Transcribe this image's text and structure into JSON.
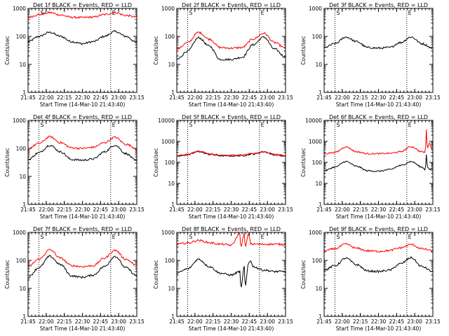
{
  "chart_data": [
    {
      "id": 1,
      "type": "line",
      "title": "Det 1f BLACK = Events, RED = LLD",
      "ylabel": "Counts/sec",
      "xlabel": "Start Time (14-Mar-10 21:43:40)",
      "xticks": [
        "21:45",
        "22:00",
        "22:15",
        "22:30",
        "22:45",
        "23:00",
        "23:15"
      ],
      "yticks": [
        "1",
        "10",
        "100",
        "1000"
      ],
      "ylim": [
        1,
        1000
      ],
      "log_y": true,
      "markers": [
        "S",
        "E"
      ],
      "series": [
        {
          "color": "#000000",
          "x": [
            0,
            10,
            20,
            30,
            40,
            50,
            60,
            70,
            80,
            90,
            100
          ],
          "y": [
            65,
            100,
            140,
            100,
            65,
            55,
            65,
            100,
            150,
            100,
            60
          ]
        },
        {
          "color": "#ff0000",
          "x": [
            0,
            10,
            20,
            30,
            40,
            50,
            60,
            70,
            80,
            90,
            100
          ],
          "y": [
            480,
            600,
            710,
            580,
            480,
            470,
            490,
            600,
            710,
            560,
            490
          ]
        }
      ]
    },
    {
      "id": 2,
      "type": "line",
      "title": "Det 2f BLACK = Events, RED = LLD",
      "ylabel": "Counts/sec",
      "xlabel": "Start Time (14-Mar-10 21:43:40)",
      "xticks": [
        "21:45",
        "22:00",
        "22:15",
        "22:30",
        "22:45",
        "23:00",
        "23:15"
      ],
      "yticks": [
        "1",
        "10",
        "100",
        "1000"
      ],
      "ylim": [
        1,
        1000
      ],
      "log_y": true,
      "markers": [
        "S",
        "E"
      ],
      "series": [
        {
          "color": "#000000",
          "x": [
            0,
            10,
            20,
            30,
            40,
            50,
            60,
            70,
            80,
            90,
            100
          ],
          "y": [
            15,
            30,
            90,
            45,
            15,
            15,
            18,
            50,
            95,
            35,
            18
          ]
        },
        {
          "color": "#ff0000",
          "x": [
            0,
            10,
            20,
            30,
            40,
            50,
            60,
            70,
            80,
            90,
            100
          ],
          "y": [
            35,
            60,
            140,
            80,
            40,
            38,
            40,
            80,
            130,
            60,
            38
          ]
        }
      ]
    },
    {
      "id": 3,
      "type": "line",
      "title": "Det 3f BLACK = Events, RED = LLD",
      "ylabel": "Counts/sec",
      "xlabel": "Start Time (14-Mar-10 21:43:40)",
      "xticks": [
        "21:45",
        "22:00",
        "22:15",
        "22:30",
        "22:45",
        "23:00",
        "23:15"
      ],
      "yticks": [
        "1",
        "10",
        "100",
        "1000"
      ],
      "ylim": [
        1,
        1000
      ],
      "log_y": true,
      "markers": [
        "S",
        "E"
      ],
      "series": [
        {
          "color": "#000000",
          "x": [
            0,
            10,
            20,
            30,
            40,
            50,
            60,
            70,
            80,
            90,
            100
          ],
          "y": [
            40,
            55,
            95,
            65,
            40,
            38,
            40,
            60,
            95,
            55,
            38
          ]
        }
      ]
    },
    {
      "id": 4,
      "type": "line",
      "title": "Det 4f BLACK = Events, RED = LLD",
      "ylabel": "Counts/sec",
      "xlabel": "Start Time (14-Mar-10 21:43:40)",
      "xticks": [
        "21:45",
        "22:00",
        "22:15",
        "22:30",
        "22:45",
        "23:00",
        "23:15"
      ],
      "yticks": [
        "1",
        "10",
        "100",
        "1000"
      ],
      "ylim": [
        1,
        1000
      ],
      "log_y": true,
      "markers": [
        "S",
        "E"
      ],
      "series": [
        {
          "color": "#000000",
          "x": [
            0,
            10,
            20,
            30,
            40,
            50,
            60,
            70,
            80,
            90,
            100
          ],
          "y": [
            40,
            70,
            130,
            75,
            40,
            38,
            42,
            75,
            130,
            65,
            35
          ]
        },
        {
          "color": "#ff0000",
          "x": [
            0,
            10,
            20,
            30,
            40,
            50,
            60,
            70,
            80,
            90,
            100
          ],
          "y": [
            100,
            150,
            260,
            160,
            105,
            100,
            110,
            160,
            250,
            140,
            100
          ]
        }
      ]
    },
    {
      "id": 5,
      "type": "line",
      "title": "Det 5f BLACK = Events, RED = LLD",
      "ylabel": "Counts/sec",
      "xlabel": "Start Time (14-Mar-10 21:43:40)",
      "xticks": [
        "21:45",
        "22:00",
        "22:15",
        "22:30",
        "22:45",
        "23:00",
        "23:15"
      ],
      "yticks": [
        "1",
        "10",
        "100",
        "1000",
        "10000"
      ],
      "ylim": [
        1,
        10000
      ],
      "log_y": true,
      "markers": [
        "S",
        "E"
      ],
      "series": [
        {
          "color": "#000000",
          "x": [
            0,
            10,
            20,
            30,
            40,
            50,
            60,
            70,
            80,
            90,
            100
          ],
          "y": [
            200,
            230,
            330,
            240,
            210,
            205,
            210,
            250,
            320,
            230,
            200
          ]
        },
        {
          "color": "#ff0000",
          "x": [
            0,
            10,
            20,
            30,
            40,
            50,
            60,
            70,
            80,
            90,
            100
          ],
          "y": [
            210,
            240,
            350,
            260,
            220,
            215,
            220,
            260,
            330,
            240,
            210
          ]
        }
      ]
    },
    {
      "id": 6,
      "type": "line",
      "title": "Det 6f BLACK = Events, RED = LLD",
      "ylabel": "Counts/sec",
      "xlabel": "Start Time (14-Mar-10 21:43:40)",
      "xticks": [
        "21:45",
        "22:00",
        "22:15",
        "22:30",
        "22:45",
        "23:00",
        "23:15"
      ],
      "yticks": [
        "1",
        "10",
        "100",
        "1000",
        "10000"
      ],
      "ylim": [
        1,
        10000
      ],
      "log_y": true,
      "markers": [
        "S",
        "E"
      ],
      "series": [
        {
          "color": "#000000",
          "x": [
            0,
            10,
            20,
            30,
            40,
            50,
            60,
            70,
            80,
            90,
            93,
            94,
            95,
            97,
            100
          ],
          "y": [
            40,
            60,
            110,
            65,
            40,
            38,
            45,
            70,
            110,
            60,
            45,
            250,
            60,
            45,
            50
          ]
        },
        {
          "color": "#ff0000",
          "x": [
            0,
            10,
            20,
            30,
            40,
            50,
            60,
            70,
            80,
            90,
            93,
            94,
            95,
            97,
            100
          ],
          "y": [
            260,
            300,
            550,
            320,
            260,
            260,
            270,
            320,
            560,
            320,
            300,
            3500,
            500,
            800,
            350
          ]
        }
      ]
    },
    {
      "id": 7,
      "type": "line",
      "title": "Det 7f BLACK = Events, RED = LLD",
      "ylabel": "Counts/sec",
      "xlabel": "Start Time (14-Mar-10 21:43:40)",
      "xticks": [
        "21:45",
        "22:00",
        "22:15",
        "22:30",
        "22:45",
        "23:00",
        "23:15"
      ],
      "yticks": [
        "1",
        "10",
        "100",
        "1000"
      ],
      "ylim": [
        1,
        1000
      ],
      "log_y": true,
      "markers": [
        "S",
        "E"
      ],
      "series": [
        {
          "color": "#000000",
          "x": [
            0,
            10,
            20,
            30,
            40,
            50,
            60,
            70,
            80,
            90,
            100
          ],
          "y": [
            25,
            55,
            140,
            70,
            28,
            25,
            30,
            60,
            140,
            55,
            28
          ]
        },
        {
          "color": "#ff0000",
          "x": [
            0,
            10,
            20,
            30,
            40,
            50,
            60,
            70,
            80,
            90,
            100
          ],
          "y": [
            60,
            110,
            240,
            120,
            65,
            60,
            65,
            120,
            230,
            110,
            65
          ]
        }
      ]
    },
    {
      "id": 8,
      "type": "line",
      "title": "Det 8f BLACK = Events, RED = LLD",
      "ylabel": "Counts/sec",
      "xlabel": "Start Time (14-Mar-10 21:43:40)",
      "xticks": [
        "21:45",
        "22:00",
        "22:15",
        "22:30",
        "22:45",
        "23:00",
        "23:15"
      ],
      "yticks": [
        "1",
        "10",
        "100",
        "1000"
      ],
      "ylim": [
        1,
        1000
      ],
      "log_y": true,
      "markers": [
        "S",
        "E"
      ],
      "series": [
        {
          "color": "#000000",
          "x": [
            0,
            10,
            20,
            30,
            40,
            50,
            58,
            59,
            62,
            63,
            66,
            68,
            70,
            80,
            90,
            100
          ],
          "y": [
            35,
            50,
            110,
            60,
            35,
            30,
            40,
            10,
            60,
            12,
            80,
            100,
            60,
            45,
            40,
            40
          ]
        },
        {
          "color": "#ff0000",
          "x": [
            0,
            10,
            20,
            30,
            40,
            50,
            58,
            59,
            62,
            63,
            66,
            68,
            70,
            80,
            90,
            100
          ],
          "y": [
            380,
            420,
            520,
            430,
            380,
            350,
            900,
            300,
            900,
            300,
            900,
            400,
            380,
            380,
            380,
            370
          ]
        }
      ]
    },
    {
      "id": 9,
      "type": "line",
      "title": "Det 9f BLACK = Events, RED = LLD",
      "ylabel": "Counts/sec",
      "xlabel": "Start Time (14-Mar-10 21:43:40)",
      "xticks": [
        "21:45",
        "22:00",
        "22:15",
        "22:30",
        "22:45",
        "23:00",
        "23:15"
      ],
      "yticks": [
        "1",
        "10",
        "100",
        "1000"
      ],
      "ylim": [
        1,
        1000
      ],
      "log_y": true,
      "markers": [
        "S",
        "E"
      ],
      "series": [
        {
          "color": "#000000",
          "x": [
            0,
            10,
            20,
            30,
            40,
            50,
            60,
            70,
            80,
            90,
            100
          ],
          "y": [
            45,
            65,
            120,
            70,
            42,
            40,
            45,
            75,
            125,
            60,
            40
          ]
        },
        {
          "color": "#ff0000",
          "x": [
            0,
            10,
            20,
            30,
            40,
            50,
            60,
            70,
            80,
            90,
            100
          ],
          "y": [
            220,
            260,
            380,
            270,
            220,
            210,
            225,
            280,
            370,
            260,
            220
          ]
        }
      ]
    }
  ]
}
